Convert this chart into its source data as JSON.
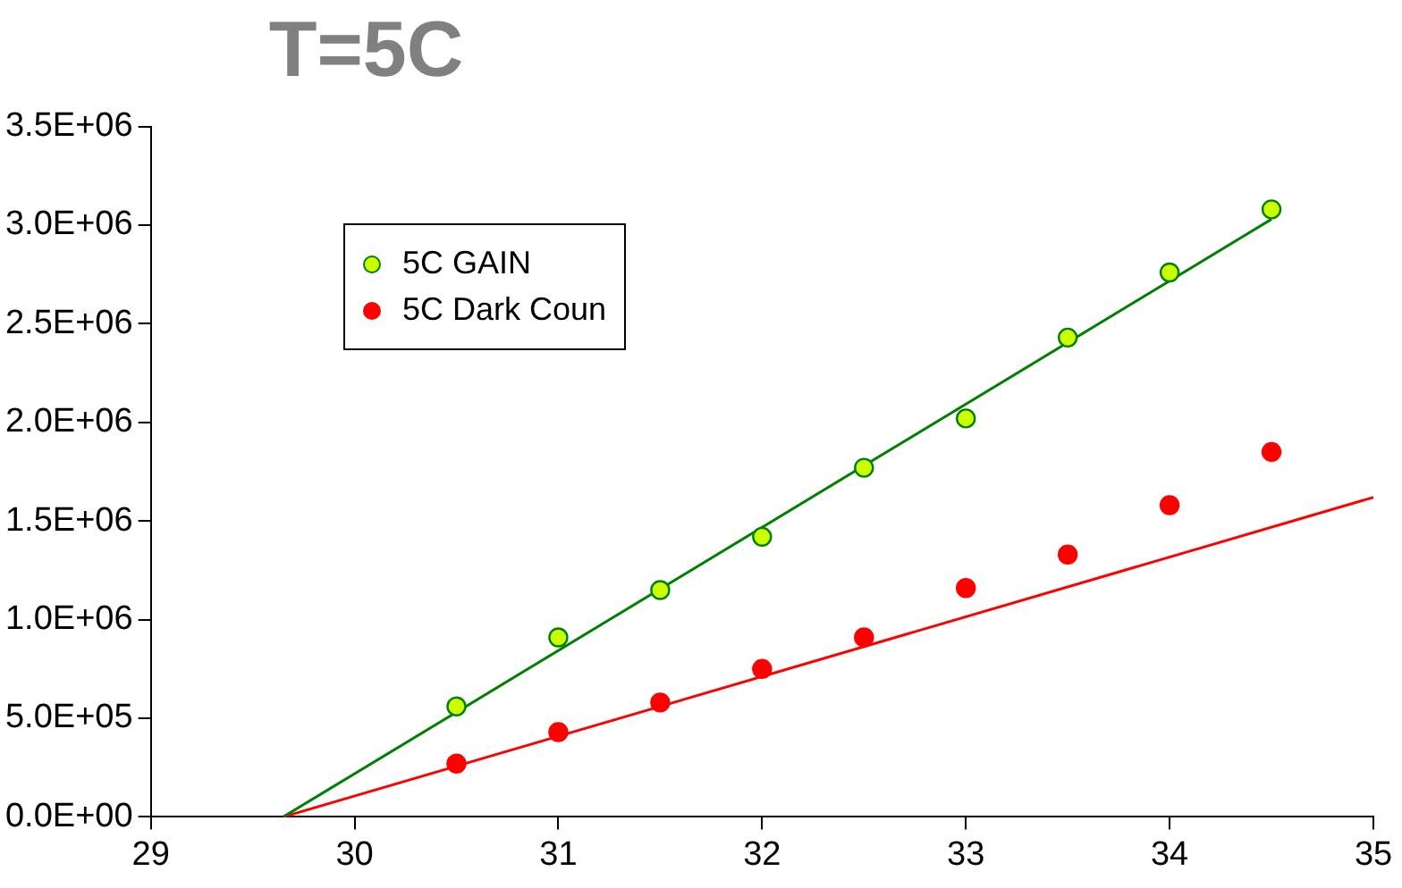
{
  "chart_data": {
    "type": "scatter",
    "title": "T=5C",
    "legend": "top left",
    "grid": false,
    "marker": "circle",
    "xlim": [
      29,
      35
    ],
    "xticks": [
      29,
      30,
      31,
      32,
      33,
      34,
      35
    ],
    "ylim": [
      0,
      3500000
    ],
    "yticks": [
      {
        "value": 0,
        "label": "0.0E+00"
      },
      {
        "value": 500000,
        "label": "5.0E+05"
      },
      {
        "value": 1000000,
        "label": "1.0E+06"
      },
      {
        "value": 1500000,
        "label": "1.5E+06"
      },
      {
        "value": 2000000,
        "label": "2.0E+06"
      },
      {
        "value": 2500000,
        "label": "2.5E+06"
      },
      {
        "value": 3000000,
        "label": "3.0E+06"
      },
      {
        "value": 3500000,
        "label": "3.5E+06"
      }
    ],
    "series": [
      {
        "name": "5C GAIN",
        "color": "#ccff00",
        "x": [
          30.5,
          31,
          31.5,
          32,
          32.5,
          33,
          33.5,
          34,
          34.5
        ],
        "values": [
          560000,
          910000,
          1150000,
          1420000,
          1770000,
          2020000,
          2430000,
          2760000,
          3080000
        ]
      },
      {
        "name": "5C Dark Coun",
        "color": "#ff0000",
        "x": [
          30.5,
          31,
          31.5,
          32,
          32.5,
          33,
          33.5,
          34,
          34.5
        ],
        "values": [
          270000,
          430000,
          580000,
          750000,
          910000,
          1160000,
          1330000,
          1580000,
          1850000
        ]
      },
      {
        "type": "line",
        "marker": "none",
        "color": "#008000",
        "x": [
          29.65,
          34.5
        ],
        "values": [
          0,
          3030000
        ]
      },
      {
        "type": "line",
        "marker": "none",
        "color": "#ff0000",
        "x": [
          29.65,
          35
        ],
        "values": [
          0,
          1620000
        ]
      }
    ]
  }
}
